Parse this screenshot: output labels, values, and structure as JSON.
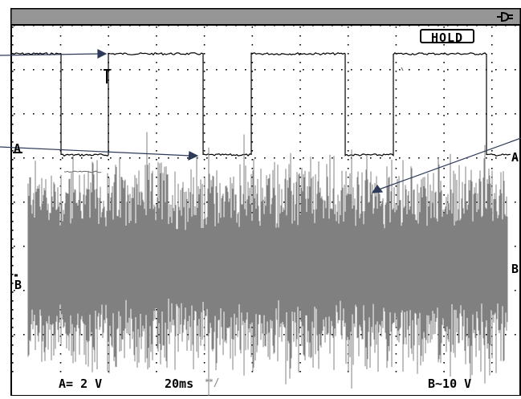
{
  "display": {
    "hold_label": "HOLD",
    "power_icon": "plug-icon",
    "channel_a_marker": "A",
    "channel_a_right_marker": "A",
    "channel_b_marker": "B",
    "channel_b_right_marker": "B",
    "cursor_icon": "trigger-cursor-icon",
    "trace_a_color": "#000000",
    "trace_b_color": "#808080",
    "grid_color": "#000000"
  },
  "status_bar": {
    "channel_a": "A= 2 V",
    "timebase": "20ms",
    "trigger_mode_icon": "trigger-mode-icon",
    "channel_b": "B~10 V"
  }
}
